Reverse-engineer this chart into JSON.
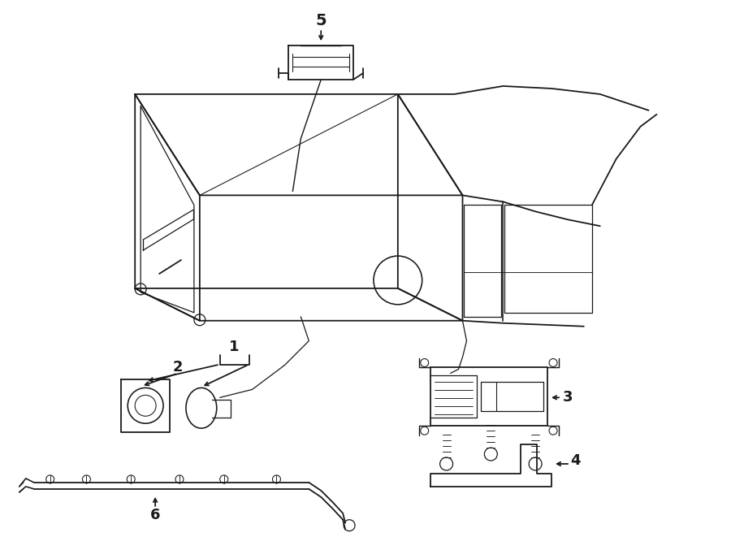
{
  "background_color": "#ffffff",
  "line_color": "#1a1a1a",
  "fig_w": 9.0,
  "fig_h": 6.61,
  "dpi": 100
}
